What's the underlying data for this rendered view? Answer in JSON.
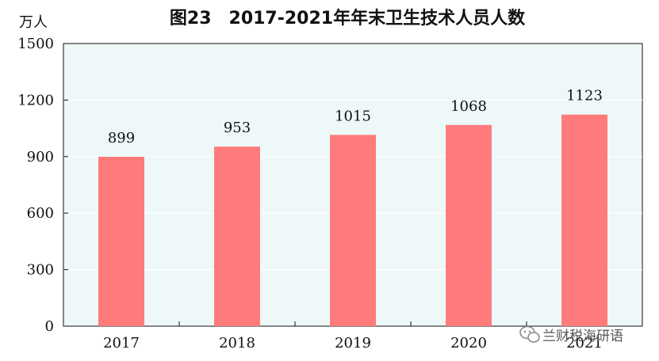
{
  "chart_data": {
    "type": "bar",
    "title": "图23　2017-2021年年末卫生技术人员人数",
    "unit_label": "万人",
    "categories": [
      "2017",
      "2018",
      "2019",
      "2020",
      "2021"
    ],
    "values": [
      899,
      953,
      1015,
      1068,
      1123
    ],
    "ylim": [
      0,
      1500
    ],
    "yticks": [
      0,
      300,
      600,
      900,
      1200,
      1500
    ],
    "grid": true,
    "bar_color": "#FF7B7B",
    "plot_background": "#EEF8F9"
  },
  "watermark": {
    "text": "兰财税海研语",
    "icon": "wechat-icon"
  }
}
